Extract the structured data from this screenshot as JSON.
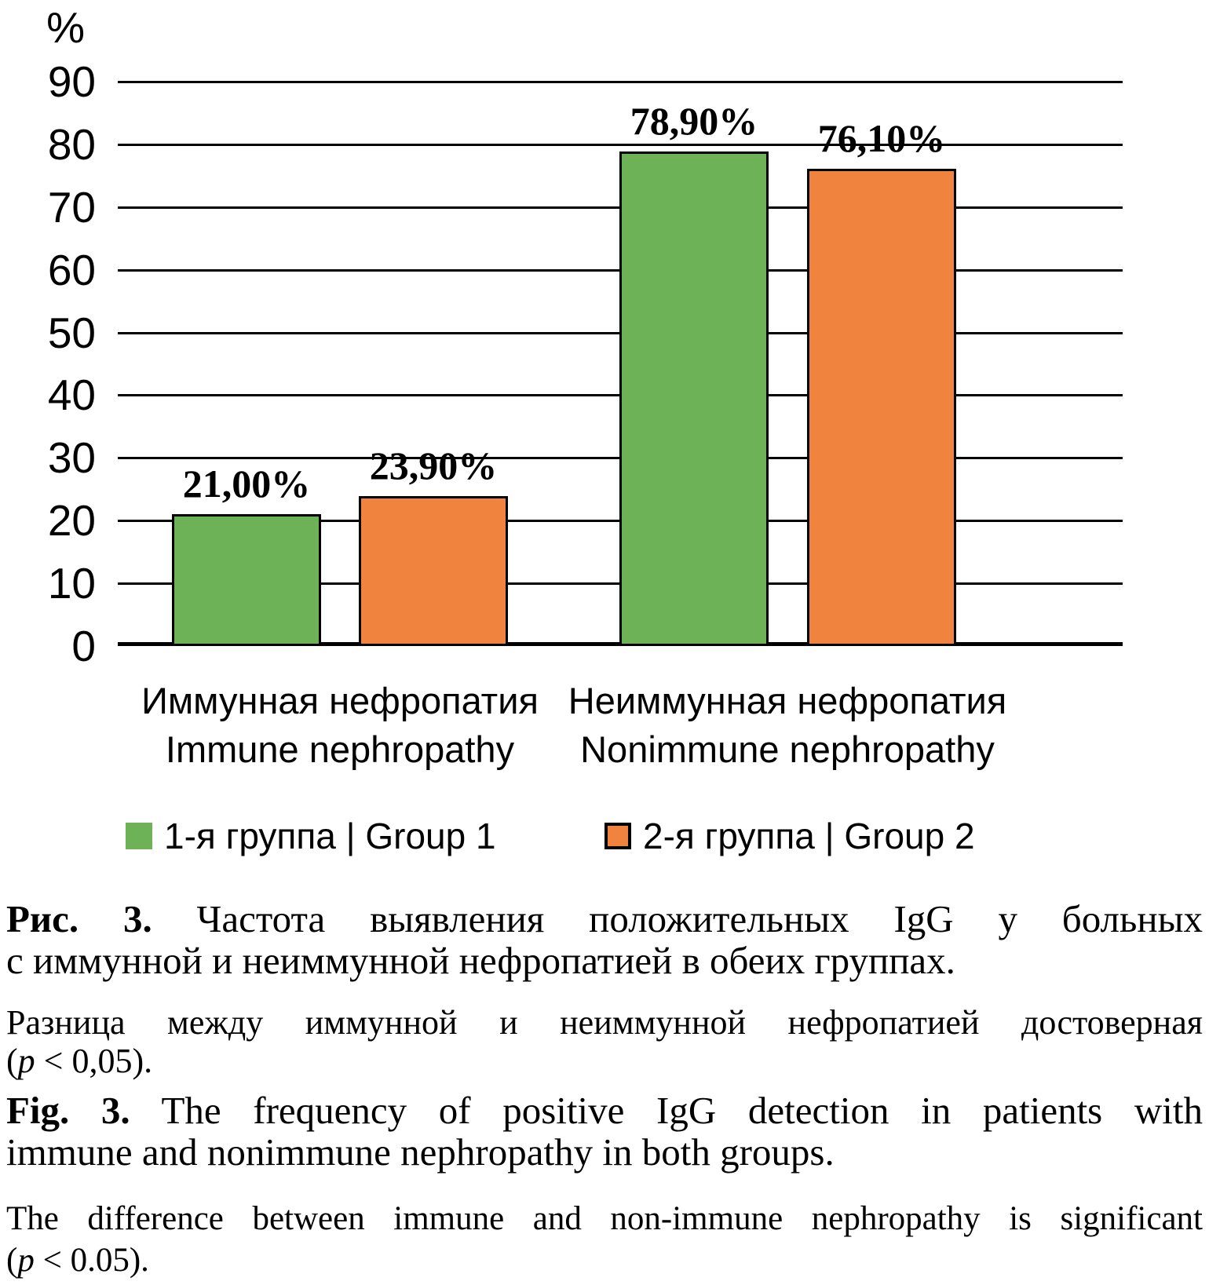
{
  "chart_data": {
    "type": "bar",
    "title": "",
    "unit": "%",
    "categories": [
      "Иммунная нефропатия | Immune nephropathy",
      "Неиммунная нефропатия | Nonimmune nephropathy"
    ],
    "series": [
      {
        "name": "1-я группа | Group 1",
        "color": "#6DB257",
        "values": [
          21.0,
          78.9
        ],
        "labels": [
          "21,00%",
          "78,90%"
        ]
      },
      {
        "name": "2-я группа | Group 2",
        "color": "#F0833E",
        "values": [
          23.9,
          76.1
        ],
        "labels": [
          "23,90%",
          "76,10%"
        ]
      }
    ],
    "ylim": [
      0,
      90
    ],
    "yticks": [
      90,
      80,
      70,
      60,
      50,
      40,
      30,
      20,
      10,
      0
    ],
    "grid": true,
    "legend_position": "bottom"
  },
  "category_labels": [
    {
      "ru": "Иммунная нефропатия",
      "en": "Immune nephropathy"
    },
    {
      "ru": "Неиммунная нефропатия",
      "en": "Nonimmune nephropathy"
    }
  ],
  "caption_ru": {
    "lead": "Рис. 3.",
    "line1_rest": " Частота выявления положительных IgG у больных",
    "line2": "с иммунной и неиммунной нефропатией в обеих группах."
  },
  "note_ru": {
    "line1": "Разница между иммунной и неиммунной нефропатией достоверная",
    "open": "(",
    "p": "p",
    "close": " < 0,05)."
  },
  "caption_en": {
    "lead": "Fig. 3.",
    "line1_rest": " The frequency of positive IgG detection in patients with",
    "line2": "immune and nonimmune nephropathy in both groups."
  },
  "note_en": {
    "line1": "The difference between immune and non-immune nephropathy is significant",
    "open": "(",
    "p": "p",
    "close": " < 0.05)."
  }
}
